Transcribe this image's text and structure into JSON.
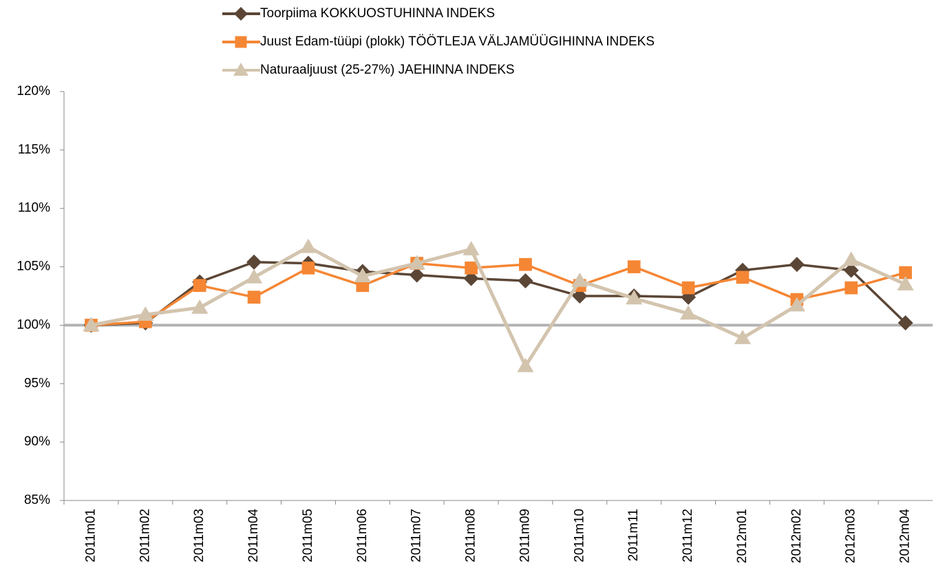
{
  "chart_data": {
    "type": "line",
    "categories": [
      "2011m01",
      "2011m02",
      "2011m03",
      "2011m04",
      "2011m05",
      "2011m06",
      "2011m07",
      "2011m08",
      "2011m09",
      "2011m10",
      "2011m11",
      "2011m12",
      "2012m01",
      "2012m02",
      "2012m03",
      "2012m04"
    ],
    "series": [
      {
        "name": "Toorpiima KOKKUOSTUHINNA INDEKS",
        "color": "#5b4636",
        "marker": "diamond",
        "values": [
          100,
          100.2,
          103.7,
          105.4,
          105.3,
          104.6,
          104.3,
          104.0,
          103.8,
          102.5,
          102.5,
          102.4,
          104.7,
          105.2,
          104.7,
          100.2
        ]
      },
      {
        "name": "Juust Edam-tüüpi (plokk) TÖÖTLEJA VÄLJAMÜÜGIHINNA INDEKS",
        "color": "#f58634",
        "marker": "square",
        "values": [
          100,
          100.3,
          103.4,
          102.4,
          104.9,
          103.4,
          105.3,
          104.9,
          105.2,
          103.4,
          105.0,
          103.2,
          104.1,
          102.2,
          103.2,
          104.5
        ]
      },
      {
        "name": "Naturaaljuust (25-27%) JAEHINNA INDEKS",
        "color": "#d3c4ae",
        "marker": "triangle",
        "values": [
          100,
          100.9,
          101.5,
          104.1,
          106.7,
          104.2,
          105.3,
          106.5,
          96.5,
          103.8,
          102.3,
          101.0,
          98.9,
          101.7,
          105.6,
          103.5
        ]
      }
    ],
    "ylim": [
      85,
      120
    ],
    "yticks": [
      {
        "value": 85,
        "label": "85%"
      },
      {
        "value": 90,
        "label": "90%"
      },
      {
        "value": 95,
        "label": "95%"
      },
      {
        "value": 100,
        "label": "100%"
      },
      {
        "value": 105,
        "label": "105%"
      },
      {
        "value": 110,
        "label": "110%"
      },
      {
        "value": 115,
        "label": "115%"
      },
      {
        "value": 120,
        "label": "120%"
      }
    ],
    "x_axis_crosses": 100,
    "grid": false,
    "legend": "top"
  }
}
